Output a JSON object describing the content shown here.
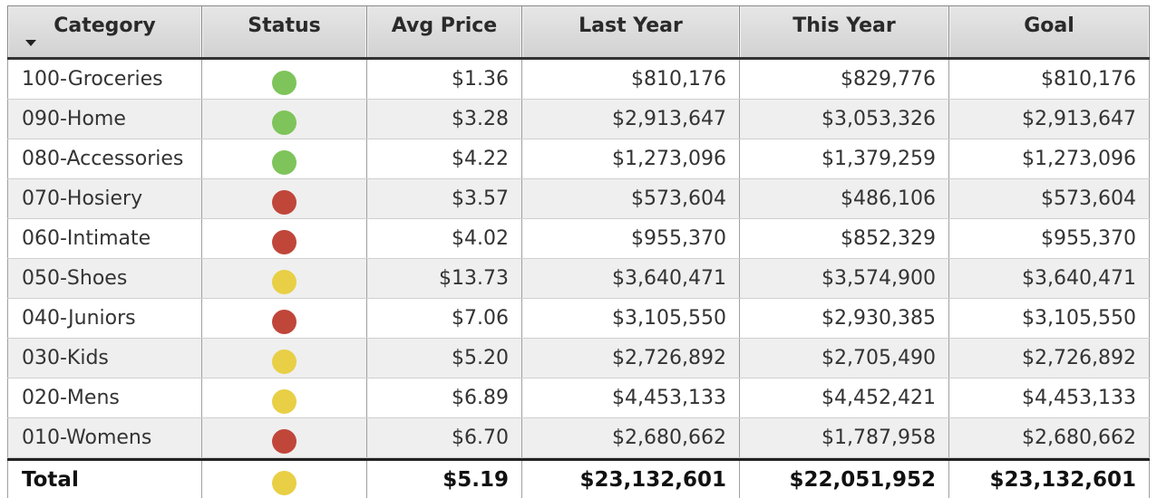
{
  "table": {
    "headers": [
      "Category",
      "Status",
      "Avg Price",
      "Last Year",
      "This Year",
      "Goal"
    ],
    "rows": [
      {
        "category": "100-Groceries",
        "status": "green",
        "avg_price": "$1.36",
        "last_year": "$810,176",
        "this_year": "$829,776",
        "goal": "$810,176"
      },
      {
        "category": "090-Home",
        "status": "green",
        "avg_price": "$3.28",
        "last_year": "$2,913,647",
        "this_year": "$3,053,326",
        "goal": "$2,913,647"
      },
      {
        "category": "080-Accessories",
        "status": "green",
        "avg_price": "$4.22",
        "last_year": "$1,273,096",
        "this_year": "$1,379,259",
        "goal": "$1,273,096"
      },
      {
        "category": "070-Hosiery",
        "status": "red",
        "avg_price": "$3.57",
        "last_year": "$573,604",
        "this_year": "$486,106",
        "goal": "$573,604"
      },
      {
        "category": "060-Intimate",
        "status": "red",
        "avg_price": "$4.02",
        "last_year": "$955,370",
        "this_year": "$852,329",
        "goal": "$955,370"
      },
      {
        "category": "050-Shoes",
        "status": "yellow",
        "avg_price": "$13.73",
        "last_year": "$3,640,471",
        "this_year": "$3,574,900",
        "goal": "$3,640,471"
      },
      {
        "category": "040-Juniors",
        "status": "red",
        "avg_price": "$7.06",
        "last_year": "$3,105,550",
        "this_year": "$2,930,385",
        "goal": "$3,105,550"
      },
      {
        "category": "030-Kids",
        "status": "yellow",
        "avg_price": "$5.20",
        "last_year": "$2,726,892",
        "this_year": "$2,705,490",
        "goal": "$2,726,892"
      },
      {
        "category": "020-Mens",
        "status": "yellow",
        "avg_price": "$6.89",
        "last_year": "$4,453,133",
        "this_year": "$4,452,421",
        "goal": "$4,453,133"
      },
      {
        "category": "010-Womens",
        "status": "red",
        "avg_price": "$6.70",
        "last_year": "$2,680,662",
        "this_year": "$1,787,958",
        "goal": "$2,680,662"
      }
    ],
    "total": {
      "category": "Total",
      "status": "yellow",
      "avg_price": "$5.19",
      "last_year": "$23,132,601",
      "this_year": "$22,051,952",
      "goal": "$23,132,601"
    }
  },
  "status_colors": {
    "green": "#7ec45a",
    "red": "#c0463a",
    "yellow": "#e8cf45"
  },
  "icons": {
    "sort": "sort-descending-icon"
  }
}
